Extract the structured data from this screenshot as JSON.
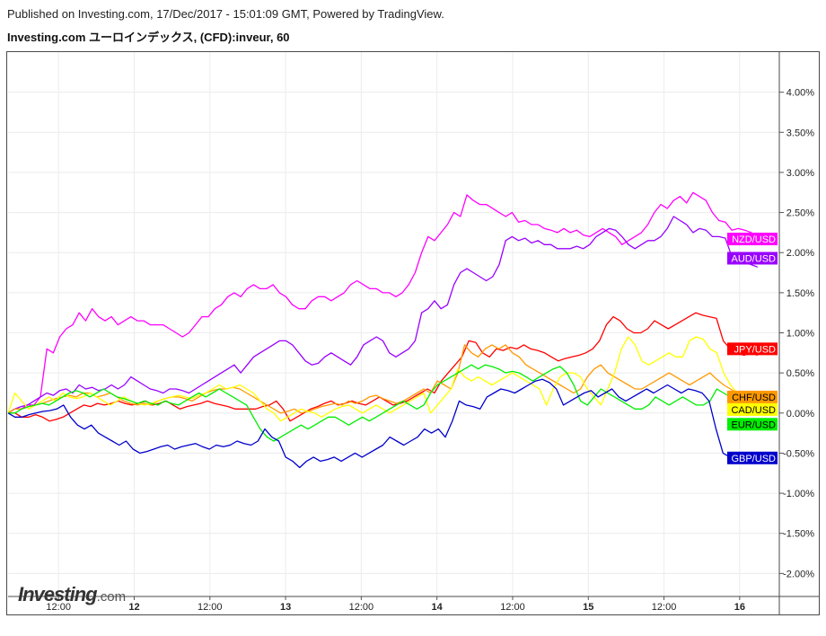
{
  "header": {
    "published": "Published on Investing.com, 17/Dec/2017 - 15:01:09 GMT, Powered by TradingView.",
    "title": "Investing.com ユーロインデックス, (CFD):inveur, 60"
  },
  "logo": {
    "main": "Investing",
    "sub": ".com"
  },
  "chart_data": {
    "type": "line",
    "y_axis": {
      "range": [
        -2.5,
        4.5
      ],
      "ticks": [
        4.0,
        3.5,
        3.0,
        2.5,
        2.0,
        1.5,
        1.0,
        0.5,
        0.0,
        -0.5,
        -1.0,
        -1.5,
        -2.0
      ],
      "tick_labels": [
        "4.00%",
        "3.50%",
        "3.00%",
        "2.50%",
        "2.00%",
        "1.50%",
        "1.00%",
        "0.50%",
        "0.00%",
        "-0.50%",
        "-1.00%",
        "-1.50%",
        "-2.00%"
      ],
      "position": "right"
    },
    "x_axis": {
      "range": [
        0,
        107
      ],
      "ticks": [
        {
          "x": 7,
          "label": "12:00",
          "bold": false
        },
        {
          "x": 17.5,
          "label": "12",
          "bold": true
        },
        {
          "x": 28,
          "label": "12:00",
          "bold": false
        },
        {
          "x": 38.5,
          "label": "13",
          "bold": true
        },
        {
          "x": 49,
          "label": "12:00",
          "bold": false
        },
        {
          "x": 59.5,
          "label": "14",
          "bold": true
        },
        {
          "x": 70,
          "label": "12:00",
          "bold": false
        },
        {
          "x": 80.5,
          "label": "15",
          "bold": true
        },
        {
          "x": 91,
          "label": "12:00",
          "bold": false
        },
        {
          "x": 101.5,
          "label": "16",
          "bold": true
        }
      ]
    },
    "grid": true,
    "series": [
      {
        "name": "NZD/USD",
        "color": "#ff00ff",
        "label_text_color": "#ffffff",
        "values": [
          0.0,
          0.05,
          0.05,
          0.1,
          0.1,
          0.2,
          0.8,
          0.75,
          0.95,
          1.05,
          1.1,
          1.25,
          1.15,
          1.3,
          1.2,
          1.15,
          1.2,
          1.1,
          1.15,
          1.2,
          1.15,
          1.15,
          1.1,
          1.1,
          1.1,
          1.05,
          1.0,
          0.95,
          1.0,
          1.1,
          1.2,
          1.2,
          1.3,
          1.35,
          1.45,
          1.5,
          1.45,
          1.55,
          1.6,
          1.55,
          1.55,
          1.6,
          1.5,
          1.45,
          1.35,
          1.3,
          1.3,
          1.4,
          1.45,
          1.45,
          1.4,
          1.45,
          1.5,
          1.6,
          1.65,
          1.6,
          1.55,
          1.55,
          1.5,
          1.5,
          1.45,
          1.5,
          1.6,
          1.75,
          2.0,
          2.2,
          2.15,
          2.25,
          2.35,
          2.5,
          2.45,
          2.72,
          2.65,
          2.6,
          2.6,
          2.55,
          2.5,
          2.45,
          2.5,
          2.38,
          2.4,
          2.35,
          2.35,
          2.3,
          2.28,
          2.25,
          2.3,
          2.25,
          2.28,
          2.22,
          2.2,
          2.25,
          2.3,
          2.25,
          2.2,
          2.1,
          2.15,
          2.2,
          2.25,
          2.35,
          2.5,
          2.6,
          2.55,
          2.65,
          2.7,
          2.62,
          2.75,
          2.7,
          2.65,
          2.5,
          2.4,
          2.38,
          2.28,
          2.3,
          2.28,
          2.25,
          2.2
        ],
        "end_value": 2.17
      },
      {
        "name": "AUD/USD",
        "color": "#9900ff",
        "label_text_color": "#ffffff",
        "values": [
          0.0,
          0.05,
          0.08,
          0.1,
          0.15,
          0.2,
          0.25,
          0.22,
          0.28,
          0.3,
          0.25,
          0.35,
          0.3,
          0.32,
          0.28,
          0.3,
          0.35,
          0.3,
          0.35,
          0.45,
          0.4,
          0.35,
          0.3,
          0.28,
          0.25,
          0.3,
          0.3,
          0.28,
          0.25,
          0.3,
          0.35,
          0.4,
          0.45,
          0.5,
          0.55,
          0.6,
          0.5,
          0.6,
          0.7,
          0.75,
          0.8,
          0.85,
          0.9,
          0.9,
          0.85,
          0.75,
          0.65,
          0.6,
          0.62,
          0.7,
          0.75,
          0.7,
          0.65,
          0.6,
          0.7,
          0.85,
          0.9,
          0.95,
          0.9,
          0.75,
          0.7,
          0.75,
          0.8,
          0.9,
          1.25,
          1.3,
          1.4,
          1.3,
          1.35,
          1.6,
          1.75,
          1.8,
          1.75,
          1.7,
          1.65,
          1.7,
          1.85,
          2.15,
          2.2,
          2.15,
          2.18,
          2.12,
          2.15,
          2.1,
          2.1,
          2.05,
          2.05,
          2.05,
          2.08,
          2.05,
          2.1,
          2.2,
          2.25,
          2.3,
          2.28,
          2.2,
          2.1,
          2.05,
          2.1,
          2.15,
          2.15,
          2.2,
          2.3,
          2.45,
          2.4,
          2.35,
          2.25,
          2.3,
          2.28,
          2.2,
          2.2,
          2.18,
          1.95,
          1.9,
          1.88,
          1.85,
          1.82
        ],
        "end_value": 1.93
      },
      {
        "name": "JPY/USD",
        "color": "#ff0000",
        "label_text_color": "#ffffff",
        "values": [
          0.0,
          0.0,
          -0.05,
          -0.05,
          -0.02,
          -0.05,
          -0.1,
          -0.08,
          -0.05,
          0.0,
          0.05,
          0.1,
          0.08,
          0.12,
          0.1,
          0.12,
          0.15,
          0.12,
          0.1,
          0.12,
          0.15,
          0.1,
          0.12,
          0.15,
          0.1,
          0.05,
          0.08,
          0.1,
          0.12,
          0.15,
          0.12,
          0.1,
          0.08,
          0.05,
          0.05,
          0.05,
          0.05,
          0.08,
          0.1,
          0.15,
          0.05,
          -0.1,
          -0.05,
          0.0,
          0.05,
          0.08,
          0.12,
          0.15,
          0.1,
          0.12,
          0.15,
          0.12,
          0.1,
          0.15,
          0.2,
          0.15,
          0.1,
          0.12,
          0.15,
          0.2,
          0.25,
          0.3,
          0.25,
          0.4,
          0.5,
          0.6,
          0.7,
          0.9,
          0.88,
          0.75,
          0.7,
          0.8,
          0.78,
          0.82,
          0.8,
          0.85,
          0.8,
          0.78,
          0.75,
          0.7,
          0.65,
          0.68,
          0.7,
          0.72,
          0.75,
          0.8,
          0.9,
          1.1,
          1.2,
          1.15,
          1.05,
          1.0,
          1.0,
          1.05,
          1.15,
          1.1,
          1.05,
          1.1,
          1.15,
          1.2,
          1.25,
          1.22,
          1.2,
          1.18,
          0.9,
          0.8,
          0.75,
          0.72,
          0.75,
          0.72
        ],
        "end_value": 0.8
      },
      {
        "name": "CHF/USD",
        "color": "#ff9900",
        "label_text_color": "#000000",
        "values": [
          0.0,
          0.05,
          0.05,
          0.08,
          0.1,
          0.12,
          0.15,
          0.18,
          0.2,
          0.22,
          0.2,
          0.25,
          0.25,
          0.2,
          0.22,
          0.25,
          0.2,
          0.15,
          0.12,
          0.1,
          0.12,
          0.1,
          0.15,
          0.18,
          0.2,
          0.2,
          0.18,
          0.15,
          0.2,
          0.25,
          0.28,
          0.3,
          0.3,
          0.32,
          0.3,
          0.25,
          0.2,
          0.15,
          0.1,
          0.05,
          0.0,
          0.02,
          0.05,
          0.0,
          0.02,
          0.05,
          0.08,
          0.1,
          0.12,
          0.1,
          0.15,
          0.12,
          0.15,
          0.2,
          0.22,
          0.18,
          0.15,
          0.12,
          0.15,
          0.2,
          0.25,
          0.3,
          0.25,
          0.4,
          0.35,
          0.3,
          0.5,
          0.85,
          0.75,
          0.7,
          0.8,
          0.85,
          0.8,
          0.85,
          0.75,
          0.7,
          0.6,
          0.55,
          0.5,
          0.45,
          0.4,
          0.35,
          0.3,
          0.25,
          0.3,
          0.45,
          0.55,
          0.6,
          0.5,
          0.45,
          0.4,
          0.35,
          0.3,
          0.3,
          0.35,
          0.4,
          0.45,
          0.5,
          0.45,
          0.4,
          0.35,
          0.4,
          0.45,
          0.5,
          0.42,
          0.35,
          0.3,
          0.25,
          0.2,
          0.15,
          0.1
        ],
        "end_value": 0.2
      },
      {
        "name": "CAD/USD",
        "color": "#ffff00",
        "label_text_color": "#000000",
        "values": [
          0.0,
          0.25,
          0.15,
          0.05,
          0.1,
          0.15,
          0.2,
          0.15,
          0.25,
          0.2,
          0.18,
          0.2,
          0.25,
          0.2,
          0.15,
          0.1,
          0.15,
          0.2,
          0.15,
          0.12,
          0.1,
          0.12,
          0.15,
          0.18,
          0.2,
          0.22,
          0.2,
          0.18,
          0.22,
          0.25,
          0.3,
          0.35,
          0.3,
          0.32,
          0.35,
          0.3,
          0.25,
          0.15,
          0.05,
          0.0,
          -0.1,
          -0.05,
          0.0,
          0.05,
          0.02,
          0.0,
          -0.05,
          0.0,
          0.05,
          0.08,
          0.1,
          0.05,
          0.0,
          0.05,
          0.1,
          0.05,
          0.0,
          0.05,
          0.1,
          0.15,
          0.2,
          0.25,
          0.0,
          0.1,
          0.2,
          0.3,
          0.55,
          0.45,
          0.4,
          0.45,
          0.4,
          0.35,
          0.4,
          0.45,
          0.5,
          0.45,
          0.4,
          0.35,
          0.3,
          0.1,
          0.3,
          0.45,
          0.5,
          0.5,
          0.45,
          0.3,
          0.2,
          0.1,
          0.3,
          0.5,
          0.8,
          0.95,
          0.85,
          0.65,
          0.6,
          0.65,
          0.7,
          0.75,
          0.7,
          0.7,
          0.9,
          0.95,
          0.92,
          0.8,
          0.75,
          0.5,
          0.35,
          0.25,
          0.1,
          0.05,
          0.0
        ],
        "end_value": 0.05
      },
      {
        "name": "EUR/USD",
        "color": "#00ee00",
        "label_text_color": "#000000",
        "values": [
          0.0,
          0.0,
          0.05,
          0.08,
          0.1,
          0.12,
          0.1,
          0.15,
          0.2,
          0.25,
          0.28,
          0.25,
          0.2,
          0.25,
          0.3,
          0.25,
          0.2,
          0.18,
          0.15,
          0.12,
          0.15,
          0.12,
          0.1,
          0.15,
          0.12,
          0.1,
          0.15,
          0.2,
          0.25,
          0.2,
          0.25,
          0.3,
          0.25,
          0.2,
          0.15,
          0.1,
          -0.05,
          -0.2,
          -0.3,
          -0.35,
          -0.3,
          -0.25,
          -0.2,
          -0.15,
          -0.2,
          -0.15,
          -0.1,
          -0.05,
          -0.05,
          -0.1,
          -0.15,
          -0.1,
          -0.05,
          -0.1,
          -0.05,
          0.0,
          0.05,
          0.1,
          0.15,
          0.1,
          0.05,
          0.1,
          0.25,
          0.35,
          0.4,
          0.45,
          0.5,
          0.55,
          0.6,
          0.55,
          0.6,
          0.58,
          0.55,
          0.5,
          0.52,
          0.5,
          0.45,
          0.4,
          0.45,
          0.5,
          0.55,
          0.58,
          0.5,
          0.35,
          0.15,
          0.1,
          0.2,
          0.3,
          0.25,
          0.2,
          0.15,
          0.1,
          0.05,
          0.05,
          0.1,
          0.2,
          0.15,
          0.1,
          0.15,
          0.2,
          0.15,
          0.1,
          0.1,
          0.15,
          0.3,
          0.25,
          0.2,
          0.18,
          0.15,
          0.1,
          0.1
        ],
        "end_value": -0.14
      },
      {
        "name": "GBP/USD",
        "color": "#0000cc",
        "label_text_color": "#ffffff",
        "values": [
          0.0,
          -0.05,
          -0.05,
          -0.02,
          0.0,
          0.02,
          0.03,
          0.05,
          0.1,
          -0.05,
          -0.15,
          -0.2,
          -0.15,
          -0.25,
          -0.3,
          -0.35,
          -0.4,
          -0.35,
          -0.45,
          -0.5,
          -0.48,
          -0.45,
          -0.42,
          -0.4,
          -0.45,
          -0.42,
          -0.4,
          -0.38,
          -0.42,
          -0.45,
          -0.4,
          -0.42,
          -0.4,
          -0.35,
          -0.38,
          -0.4,
          -0.35,
          -0.2,
          -0.3,
          -0.35,
          -0.55,
          -0.6,
          -0.68,
          -0.6,
          -0.55,
          -0.6,
          -0.58,
          -0.55,
          -0.6,
          -0.55,
          -0.5,
          -0.55,
          -0.5,
          -0.45,
          -0.4,
          -0.3,
          -0.35,
          -0.4,
          -0.35,
          -0.3,
          -0.2,
          -0.25,
          -0.2,
          -0.3,
          -0.1,
          0.15,
          0.1,
          0.08,
          0.05,
          0.2,
          0.25,
          0.3,
          0.28,
          0.25,
          0.3,
          0.35,
          0.4,
          0.42,
          0.38,
          0.3,
          0.1,
          0.15,
          0.2,
          0.25,
          0.28,
          0.2,
          0.25,
          0.3,
          0.2,
          0.15,
          0.2,
          0.25,
          0.3,
          0.25,
          0.3,
          0.35,
          0.3,
          0.25,
          0.3,
          0.28,
          0.25,
          0.15,
          -0.2,
          -0.5,
          -0.55,
          -0.6,
          -0.62,
          -0.58,
          -0.6
        ],
        "end_value": -0.56
      }
    ]
  }
}
